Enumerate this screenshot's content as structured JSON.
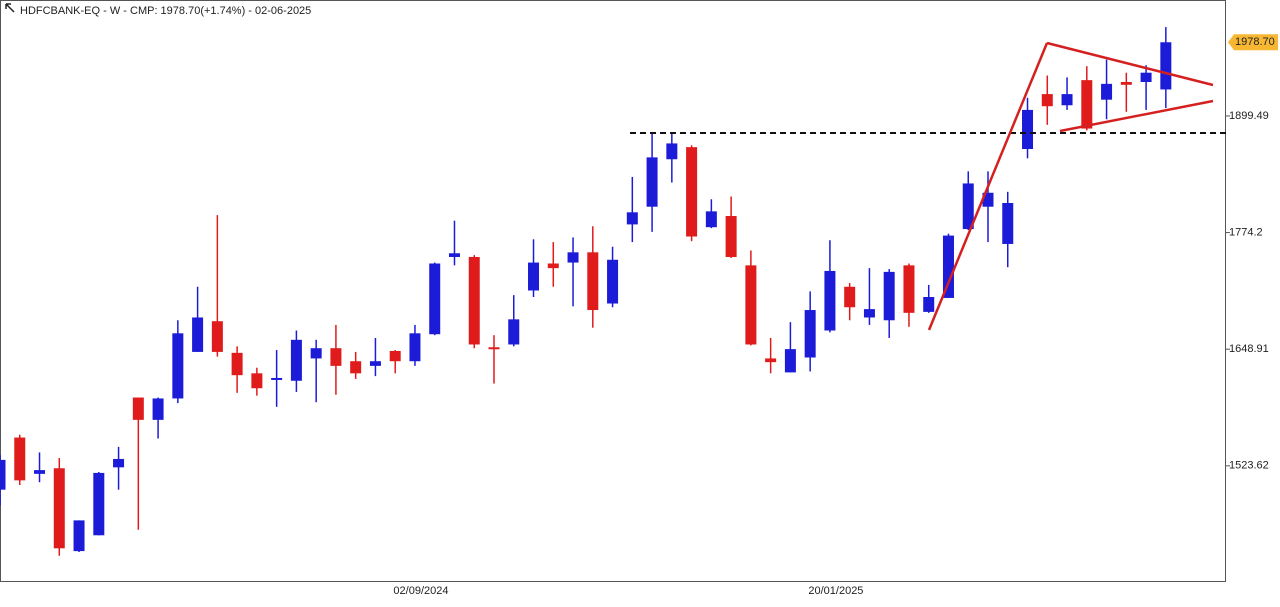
{
  "chart_data": {
    "type": "candlestick",
    "title": "HDFCBANK-EQ - W - CMP: 1978.70(+1.74%) - 02-06-2025",
    "categories": [
      null,
      null,
      null,
      null,
      null,
      null,
      null,
      null,
      null,
      null,
      null,
      null,
      null,
      null,
      null,
      null,
      null,
      null,
      null,
      null,
      null,
      "02/09/2024",
      null,
      null,
      null,
      null,
      null,
      null,
      null,
      null,
      null,
      null,
      null,
      null,
      null,
      null,
      null,
      null,
      null,
      null,
      null,
      null,
      "20/01/2025",
      null,
      null,
      null,
      null,
      null,
      null,
      null,
      null,
      null,
      null,
      null,
      null,
      null,
      null,
      null,
      null,
      null
    ],
    "open": [
      1498,
      1554,
      1515,
      1521,
      1432,
      1449,
      1522,
      1597,
      1573,
      1596,
      1646,
      1679,
      1645,
      1623,
      1616,
      1615,
      1639,
      1650,
      1636,
      1631,
      1647,
      1636,
      1665,
      1748,
      1748,
      1651,
      1654,
      1712,
      1741,
      1742,
      1753,
      1698,
      1783,
      1802,
      1853,
      1866,
      1780,
      1792,
      1739,
      1639,
      1624,
      1640,
      1669,
      1716,
      1683,
      1680,
      1739,
      1689,
      1704,
      1778,
      1802,
      1762,
      1864,
      1923,
      1911,
      1938,
      1917,
      1936,
      1936,
      1928
    ],
    "high": [
      1535,
      1557,
      1538,
      1532,
      1465,
      1517,
      1544,
      1597,
      1597,
      1680,
      1716,
      1793,
      1652,
      1629,
      1648,
      1669,
      1659,
      1675,
      1646,
      1661,
      1648,
      1675,
      1742,
      1787,
      1750,
      1664,
      1707,
      1767,
      1764,
      1769,
      1781,
      1759,
      1834,
      1881,
      1881,
      1868,
      1810,
      1813,
      1755,
      1661,
      1678,
      1711,
      1766,
      1720,
      1736,
      1735,
      1741,
      1718,
      1773,
      1840,
      1840,
      1818,
      1919,
      1943,
      1941,
      1953,
      1960,
      1946,
      1954,
      1995
    ],
    "low": [
      1481,
      1503,
      1506,
      1427,
      1431,
      1449,
      1498,
      1455,
      1553,
      1591,
      1646,
      1641,
      1602,
      1599,
      1587,
      1603,
      1592,
      1600,
      1617,
      1620,
      1623,
      1631,
      1664,
      1739,
      1650,
      1612,
      1652,
      1705,
      1716,
      1695,
      1672,
      1694,
      1764,
      1775,
      1828,
      1765,
      1779,
      1747,
      1653,
      1623,
      1624,
      1625,
      1667,
      1680,
      1675,
      1661,
      1673,
      1688,
      1704,
      1777,
      1764,
      1737,
      1854,
      1890,
      1906,
      1884,
      1896,
      1904,
      1906,
      1908
    ],
    "close": [
      1530,
      1508,
      1519,
      1435,
      1465,
      1516,
      1531,
      1573,
      1596,
      1666,
      1683,
      1646,
      1621,
      1607,
      1618,
      1659,
      1650,
      1631,
      1623,
      1636,
      1636,
      1666,
      1741,
      1752,
      1654,
      1650,
      1681,
      1742,
      1736,
      1753,
      1691,
      1745,
      1796,
      1855,
      1870,
      1770,
      1797,
      1748,
      1654,
      1635,
      1649,
      1691,
      1733,
      1694,
      1692,
      1732,
      1688,
      1705,
      1771,
      1827,
      1817,
      1806,
      1906,
      1910,
      1923,
      1886,
      1934,
      1933,
      1946,
      1978.7
    ],
    "up_color": "#1c1cd8",
    "down_color": "#e01b1b",
    "ylim": [
      1398.8,
      2024.1
    ],
    "yticks": [
      1523.62,
      1648.91,
      1774.2,
      1899.49
    ],
    "last_price": {
      "value": 1978.7,
      "label": "1978.70"
    }
  }
}
